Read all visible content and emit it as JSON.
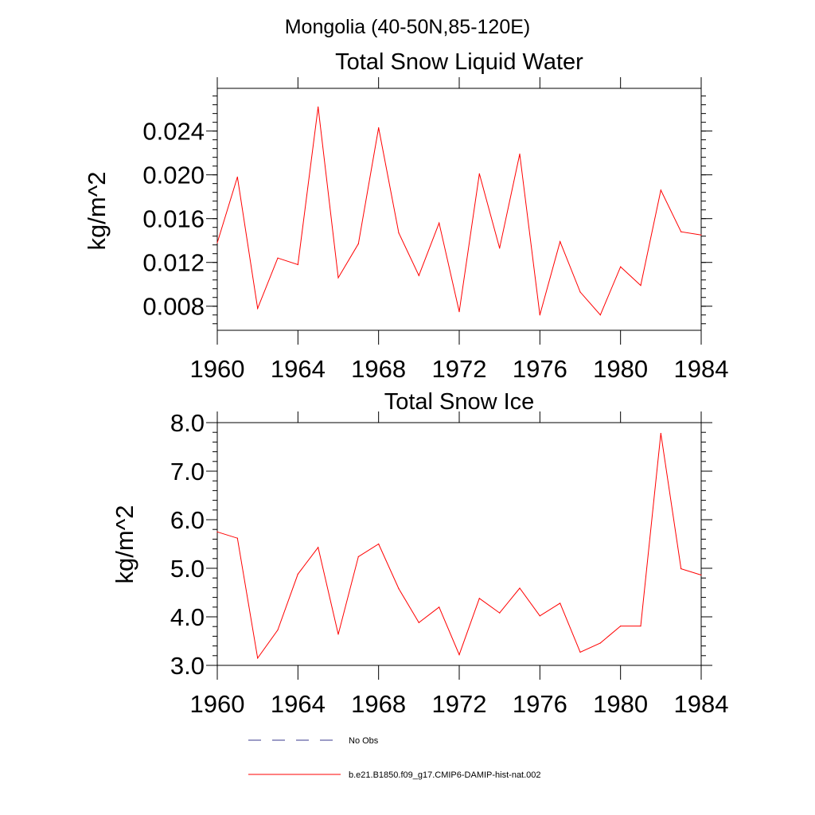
{
  "suptitle": "Mongolia (40-50N,85-120E)",
  "chart_data": [
    {
      "type": "line",
      "title": "Total Snow Liquid Water",
      "xlabel": "",
      "ylabel": "kg/m^2",
      "xlim": [
        1960,
        1984
      ],
      "ylim": [
        0.0058,
        0.0279
      ],
      "xticks": [
        1960,
        1964,
        1968,
        1972,
        1976,
        1980,
        1984
      ],
      "xtick_labels": [
        "1960",
        "1964",
        "1968",
        "1972",
        "1976",
        "1980",
        "1984"
      ],
      "yticks": [
        0.008,
        0.012,
        0.016,
        0.02,
        0.024
      ],
      "ytick_labels": [
        "0.008",
        "0.012",
        "0.016",
        "0.020",
        "0.024"
      ],
      "series": [
        {
          "name": "b.e21.B1850.f09_g17.CMIP6-DAMIP-hist-nat.002",
          "color": "#ff0000",
          "x": [
            1960,
            1961,
            1962,
            1963,
            1964,
            1965,
            1966,
            1967,
            1968,
            1969,
            1970,
            1971,
            1972,
            1973,
            1974,
            1975,
            1976,
            1977,
            1978,
            1979,
            1980,
            1981,
            1982,
            1983,
            1984
          ],
          "values": [
            0.0138,
            0.0198,
            0.0078,
            0.0124,
            0.0118,
            0.0262,
            0.0106,
            0.0137,
            0.0243,
            0.0147,
            0.0108,
            0.0156,
            0.0075,
            0.0201,
            0.0133,
            0.0219,
            0.0072,
            0.0139,
            0.0093,
            0.0072,
            0.0116,
            0.0099,
            0.0186,
            0.0148,
            0.0145
          ]
        }
      ]
    },
    {
      "type": "line",
      "title": "Total Snow Ice",
      "xlabel": "",
      "ylabel": "kg/m^2",
      "xlim": [
        1960,
        1984
      ],
      "ylim": [
        3.0,
        8.0
      ],
      "xticks": [
        1960,
        1964,
        1968,
        1972,
        1976,
        1980,
        1984
      ],
      "xtick_labels": [
        "1960",
        "1964",
        "1968",
        "1972",
        "1976",
        "1980",
        "1984"
      ],
      "yticks": [
        3.0,
        4.0,
        5.0,
        6.0,
        7.0,
        8.0
      ],
      "ytick_labels": [
        "3.0",
        "4.0",
        "5.0",
        "6.0",
        "7.0",
        "8.0"
      ],
      "series": [
        {
          "name": "b.e21.B1850.f09_g17.CMIP6-DAMIP-hist-nat.002",
          "color": "#ff0000",
          "x": [
            1960,
            1961,
            1962,
            1963,
            1964,
            1965,
            1966,
            1967,
            1968,
            1969,
            1970,
            1971,
            1972,
            1973,
            1974,
            1975,
            1976,
            1977,
            1978,
            1979,
            1980,
            1981,
            1982,
            1983,
            1984
          ],
          "values": [
            5.75,
            5.62,
            3.15,
            3.73,
            4.88,
            5.43,
            3.64,
            5.24,
            5.5,
            4.58,
            3.88,
            4.2,
            3.22,
            4.38,
            4.08,
            4.59,
            4.02,
            4.28,
            3.27,
            3.46,
            3.81,
            3.81,
            7.78,
            4.99,
            4.86
          ]
        }
      ]
    }
  ],
  "legend": {
    "placement": "bottom-center",
    "entries": [
      {
        "label": "No Obs",
        "color": "#3a3a8c",
        "style": "dashed"
      },
      {
        "label": "b.e21.B1850.f09_g17.CMIP6-DAMIP-hist-nat.002",
        "color": "#ff0000",
        "style": "solid"
      }
    ]
  }
}
